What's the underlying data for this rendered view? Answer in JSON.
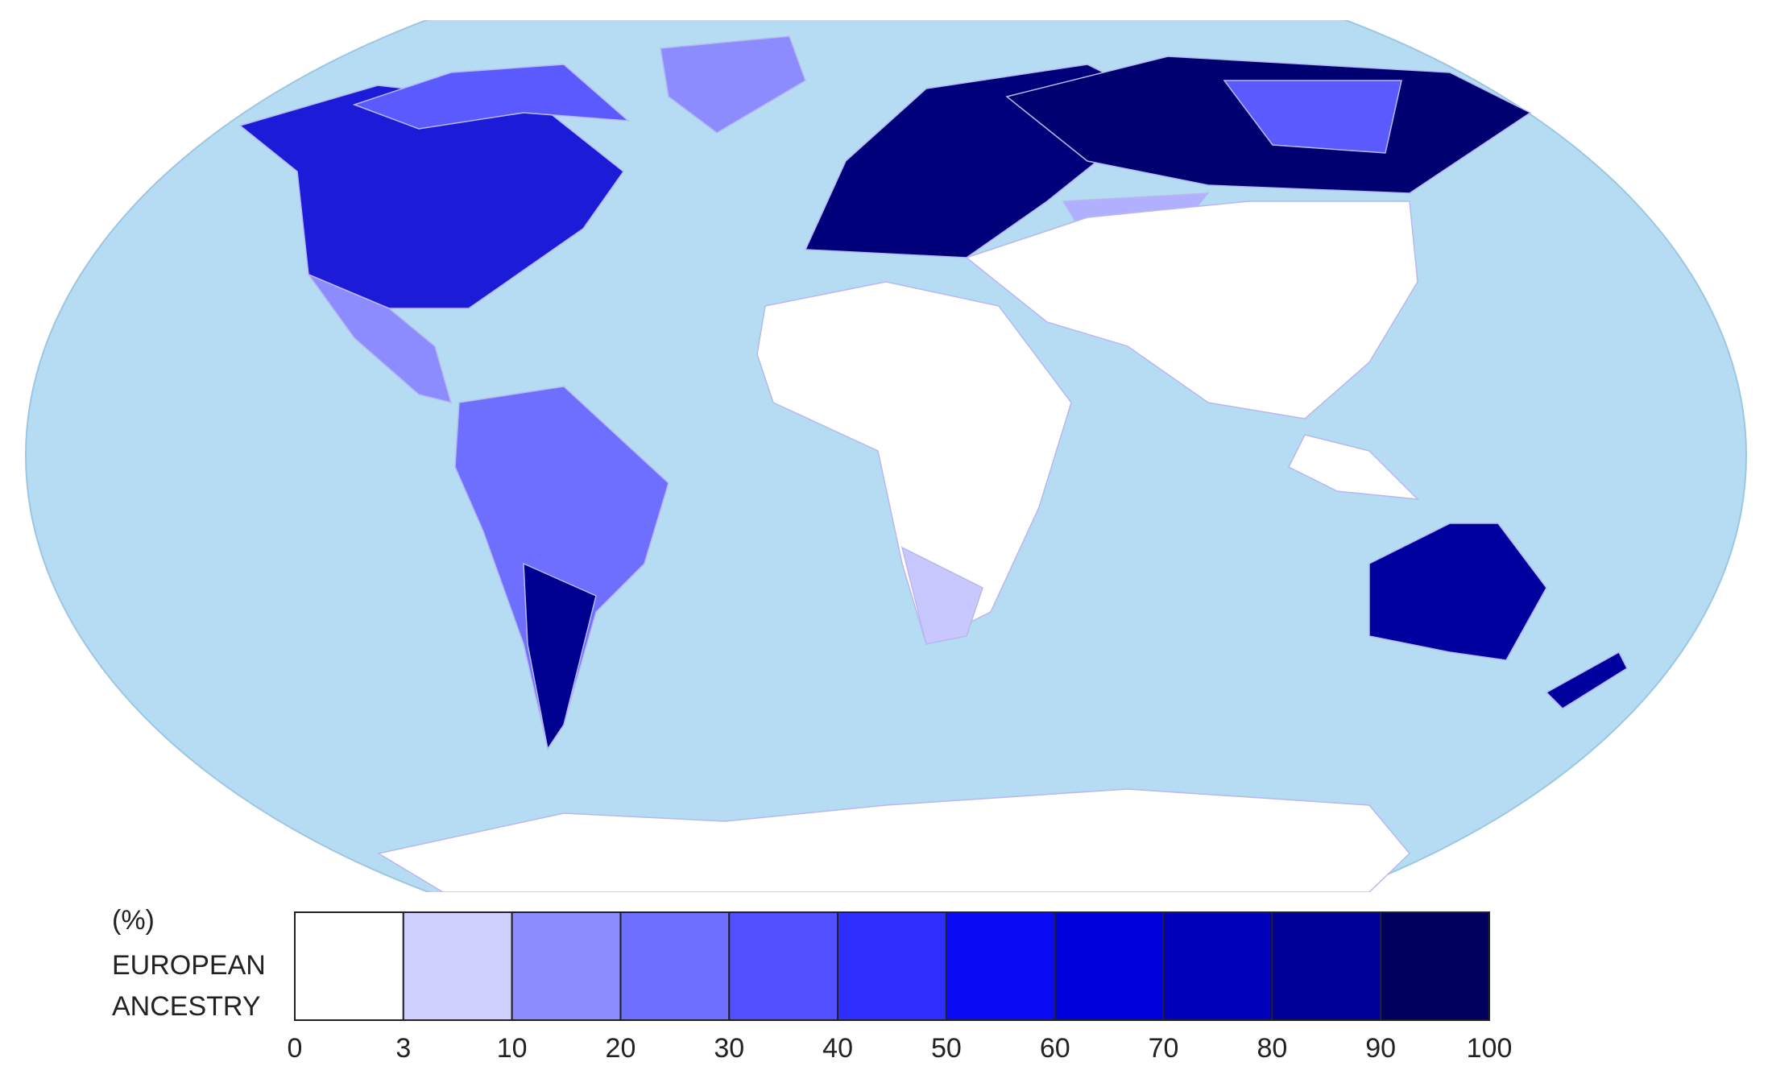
{
  "legend": {
    "title": "(%)",
    "label": [
      "EUROPEAN",
      "ANCESTRY"
    ],
    "ticks": [
      0,
      3,
      10,
      20,
      30,
      40,
      50,
      60,
      70,
      80,
      90,
      100
    ],
    "colors": [
      "#ffffff",
      "#d0d0ff",
      "#8c8cff",
      "#6e6eff",
      "#5050ff",
      "#2e2eff",
      "#0a0af5",
      "#0000dc",
      "#0000bb",
      "#000098",
      "#00005e"
    ]
  }
}
